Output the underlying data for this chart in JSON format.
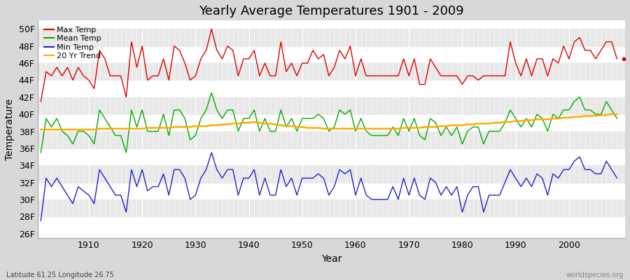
{
  "title": "Yearly Average Temperatures 1901 - 2009",
  "xlabel": "Year",
  "ylabel": "Temperature",
  "subtitle_left": "Latitude 61.25 Longitude 26.75",
  "subtitle_right": "worldspecies.org",
  "ylim": [
    25.5,
    51.0
  ],
  "xlim": [
    1900.5,
    2010.5
  ],
  "yticks": [
    26,
    28,
    30,
    32,
    34,
    36,
    38,
    40,
    42,
    44,
    46,
    48,
    50
  ],
  "ytick_labels": [
    "26F",
    "28F",
    "30F",
    "32F",
    "34F",
    "36F",
    "38F",
    "40F",
    "42F",
    "44F",
    "46F",
    "48F",
    "50F"
  ],
  "xticks": [
    1910,
    1920,
    1930,
    1940,
    1950,
    1960,
    1970,
    1980,
    1990,
    2000
  ],
  "bg_color": "#d8d8d8",
  "plot_bg_light": "#ffffff",
  "plot_bg_dark": "#e8e8e8",
  "line_color_max": "#dd0000",
  "line_color_mean": "#00aa00",
  "line_color_min": "#2222cc",
  "line_color_trend": "#ffaa00",
  "legend_labels": [
    "Max Temp",
    "Mean Temp",
    "Min Temp",
    "20 Yr Trend"
  ],
  "years": [
    1901,
    1902,
    1903,
    1904,
    1905,
    1906,
    1907,
    1908,
    1909,
    1910,
    1911,
    1912,
    1913,
    1914,
    1915,
    1916,
    1917,
    1918,
    1919,
    1920,
    1921,
    1922,
    1923,
    1924,
    1925,
    1926,
    1927,
    1928,
    1929,
    1930,
    1931,
    1932,
    1933,
    1934,
    1935,
    1936,
    1937,
    1938,
    1939,
    1940,
    1941,
    1942,
    1943,
    1944,
    1945,
    1946,
    1947,
    1948,
    1949,
    1950,
    1951,
    1952,
    1953,
    1954,
    1955,
    1956,
    1957,
    1958,
    1959,
    1960,
    1961,
    1962,
    1963,
    1964,
    1965,
    1966,
    1967,
    1968,
    1969,
    1970,
    1971,
    1972,
    1973,
    1974,
    1975,
    1976,
    1977,
    1978,
    1979,
    1980,
    1981,
    1982,
    1983,
    1984,
    1985,
    1986,
    1987,
    1988,
    1989,
    1990,
    1991,
    1992,
    1993,
    1994,
    1995,
    1996,
    1997,
    1998,
    1999,
    2000,
    2001,
    2002,
    2003,
    2004,
    2005,
    2006,
    2007,
    2008,
    2009
  ],
  "max_temp": [
    41.5,
    45.0,
    44.5,
    45.5,
    44.5,
    45.5,
    44.0,
    45.5,
    44.5,
    44.0,
    43.0,
    47.5,
    46.5,
    44.5,
    44.5,
    44.5,
    42.0,
    48.5,
    45.5,
    48.0,
    44.0,
    44.5,
    44.5,
    46.5,
    44.0,
    48.0,
    47.5,
    46.0,
    44.0,
    44.5,
    46.5,
    47.5,
    50.0,
    47.5,
    46.5,
    48.0,
    47.5,
    44.5,
    46.5,
    46.5,
    47.5,
    44.5,
    46.0,
    44.5,
    44.5,
    48.5,
    45.0,
    46.0,
    44.5,
    46.0,
    46.0,
    47.5,
    46.5,
    47.0,
    44.5,
    45.5,
    47.5,
    46.5,
    48.0,
    44.5,
    46.5,
    44.5,
    44.5,
    44.5,
    44.5,
    44.5,
    44.5,
    44.5,
    46.5,
    44.5,
    46.5,
    43.5,
    43.5,
    46.5,
    45.5,
    44.5,
    44.5,
    44.5,
    44.5,
    43.5,
    44.5,
    44.5,
    44.0,
    44.5,
    44.5,
    44.5,
    44.5,
    44.5,
    48.5,
    46.0,
    44.5,
    46.5,
    44.5,
    46.5,
    46.5,
    44.5,
    46.5,
    46.0,
    48.0,
    46.5,
    48.5,
    49.0,
    47.5,
    47.5,
    46.5,
    47.5,
    48.5,
    48.5,
    46.5
  ],
  "mean_temp": [
    35.5,
    39.5,
    38.5,
    39.5,
    38.0,
    37.5,
    36.5,
    38.0,
    38.0,
    37.5,
    36.5,
    40.5,
    39.5,
    38.5,
    37.5,
    37.5,
    35.5,
    40.5,
    38.5,
    40.5,
    38.0,
    38.0,
    38.0,
    40.0,
    37.5,
    40.5,
    40.5,
    39.5,
    37.0,
    37.5,
    39.5,
    40.5,
    42.5,
    40.5,
    39.5,
    40.5,
    40.5,
    38.0,
    39.5,
    39.5,
    40.5,
    38.0,
    39.5,
    38.0,
    38.0,
    40.5,
    38.5,
    39.5,
    38.0,
    39.5,
    39.5,
    39.5,
    40.0,
    39.5,
    38.0,
    38.5,
    40.5,
    40.0,
    40.5,
    38.0,
    39.5,
    38.0,
    37.5,
    37.5,
    37.5,
    37.5,
    38.5,
    37.5,
    39.5,
    38.0,
    39.5,
    37.5,
    37.0,
    39.5,
    39.0,
    37.5,
    38.5,
    37.5,
    38.5,
    36.5,
    38.0,
    38.5,
    38.5,
    36.5,
    38.0,
    38.0,
    38.0,
    39.0,
    40.5,
    39.5,
    38.5,
    39.5,
    38.5,
    40.0,
    39.5,
    38.0,
    40.0,
    39.5,
    40.5,
    40.5,
    41.5,
    42.0,
    40.5,
    40.5,
    40.0,
    40.0,
    41.5,
    40.5,
    39.5
  ],
  "min_temp": [
    27.5,
    32.5,
    31.5,
    32.5,
    31.5,
    30.5,
    29.5,
    31.5,
    31.0,
    30.5,
    29.5,
    33.5,
    32.5,
    31.5,
    30.5,
    30.5,
    28.5,
    33.5,
    31.5,
    33.5,
    31.0,
    31.5,
    31.5,
    33.0,
    30.5,
    33.5,
    33.5,
    32.5,
    30.0,
    30.5,
    32.5,
    33.5,
    35.5,
    33.5,
    32.5,
    33.5,
    33.5,
    30.5,
    32.5,
    32.5,
    33.5,
    30.5,
    32.5,
    30.5,
    30.5,
    33.5,
    31.5,
    32.5,
    30.5,
    32.5,
    32.5,
    32.5,
    33.0,
    32.5,
    30.5,
    31.5,
    33.5,
    33.0,
    33.5,
    30.5,
    32.5,
    30.5,
    30.0,
    30.0,
    30.0,
    30.0,
    31.5,
    30.0,
    32.5,
    30.5,
    32.5,
    30.5,
    30.0,
    32.5,
    32.0,
    30.5,
    31.5,
    30.5,
    31.5,
    28.5,
    30.5,
    31.5,
    31.5,
    28.5,
    30.5,
    30.5,
    30.5,
    32.0,
    33.5,
    32.5,
    31.5,
    32.5,
    31.5,
    33.0,
    32.5,
    30.5,
    33.0,
    32.5,
    33.5,
    33.5,
    34.5,
    35.0,
    33.5,
    33.5,
    33.0,
    33.0,
    34.5,
    33.5,
    32.5
  ],
  "trend": [
    38.2,
    38.2,
    38.2,
    38.2,
    38.2,
    38.2,
    38.2,
    38.2,
    38.2,
    38.2,
    38.2,
    38.3,
    38.3,
    38.3,
    38.3,
    38.3,
    38.3,
    38.3,
    38.3,
    38.3,
    38.4,
    38.4,
    38.4,
    38.4,
    38.4,
    38.5,
    38.5,
    38.5,
    38.5,
    38.6,
    38.6,
    38.6,
    38.7,
    38.7,
    38.8,
    38.8,
    38.9,
    38.9,
    39.0,
    39.0,
    39.1,
    39.0,
    38.9,
    38.9,
    38.8,
    38.7,
    38.6,
    38.6,
    38.5,
    38.5,
    38.4,
    38.4,
    38.4,
    38.3,
    38.3,
    38.3,
    38.3,
    38.3,
    38.3,
    38.3,
    38.3,
    38.3,
    38.3,
    38.3,
    38.3,
    38.3,
    38.3,
    38.3,
    38.4,
    38.4,
    38.4,
    38.4,
    38.5,
    38.5,
    38.5,
    38.6,
    38.6,
    38.7,
    38.7,
    38.7,
    38.8,
    38.8,
    38.9,
    38.9,
    38.9,
    39.0,
    39.0,
    39.1,
    39.1,
    39.2,
    39.2,
    39.3,
    39.3,
    39.4,
    39.4,
    39.4,
    39.5,
    39.5,
    39.6,
    39.6,
    39.7,
    39.7,
    39.8,
    39.8,
    39.8,
    39.9,
    39.9,
    40.0,
    40.0
  ]
}
